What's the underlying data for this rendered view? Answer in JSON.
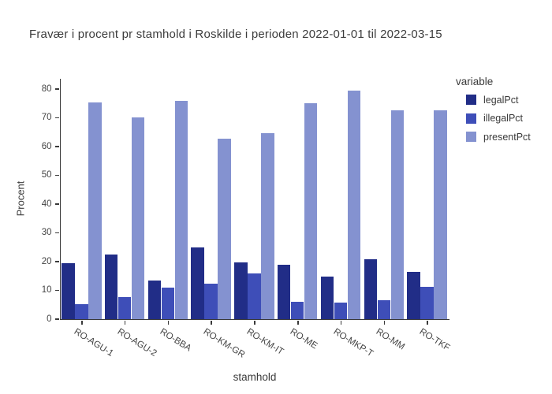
{
  "chart_data": {
    "type": "bar",
    "title": "Fravær i procent pr stamhold i Roskilde i perioden 2022-01-01 til 2022-03-15",
    "xlabel": "stamhold",
    "ylabel": "Procent",
    "ylim": [
      0,
      80
    ],
    "yticks": [
      0,
      10,
      20,
      30,
      40,
      50,
      60,
      70,
      80
    ],
    "grid": false,
    "legend_title": "variable",
    "legend_position": "right",
    "categories": [
      "RO-AGU-1",
      "RO-AGU-2",
      "RO-BBA",
      "RO-KM-GR",
      "RO-KM-IT",
      "RO-ME",
      "RO-MKP-T",
      "RO-MM",
      "RO-TKF"
    ],
    "series": [
      {
        "name": "legalPct",
        "color": "#212d87",
        "values": [
          19.4,
          22.4,
          13.4,
          24.9,
          19.7,
          18.9,
          14.9,
          20.9,
          16.4
        ]
      },
      {
        "name": "illegalPct",
        "color": "#3e4eb8",
        "values": [
          5.2,
          7.6,
          10.9,
          12.3,
          15.8,
          6.1,
          5.7,
          6.6,
          11.1
        ]
      },
      {
        "name": "presentPct",
        "color": "#8492d0",
        "values": [
          75.4,
          70.0,
          75.7,
          62.8,
          64.5,
          75.0,
          79.4,
          72.5,
          72.5
        ]
      }
    ]
  },
  "colors": {
    "axis": "#3a3a3a",
    "tick_label": "#444444",
    "title_text": "#3c3c3c"
  }
}
